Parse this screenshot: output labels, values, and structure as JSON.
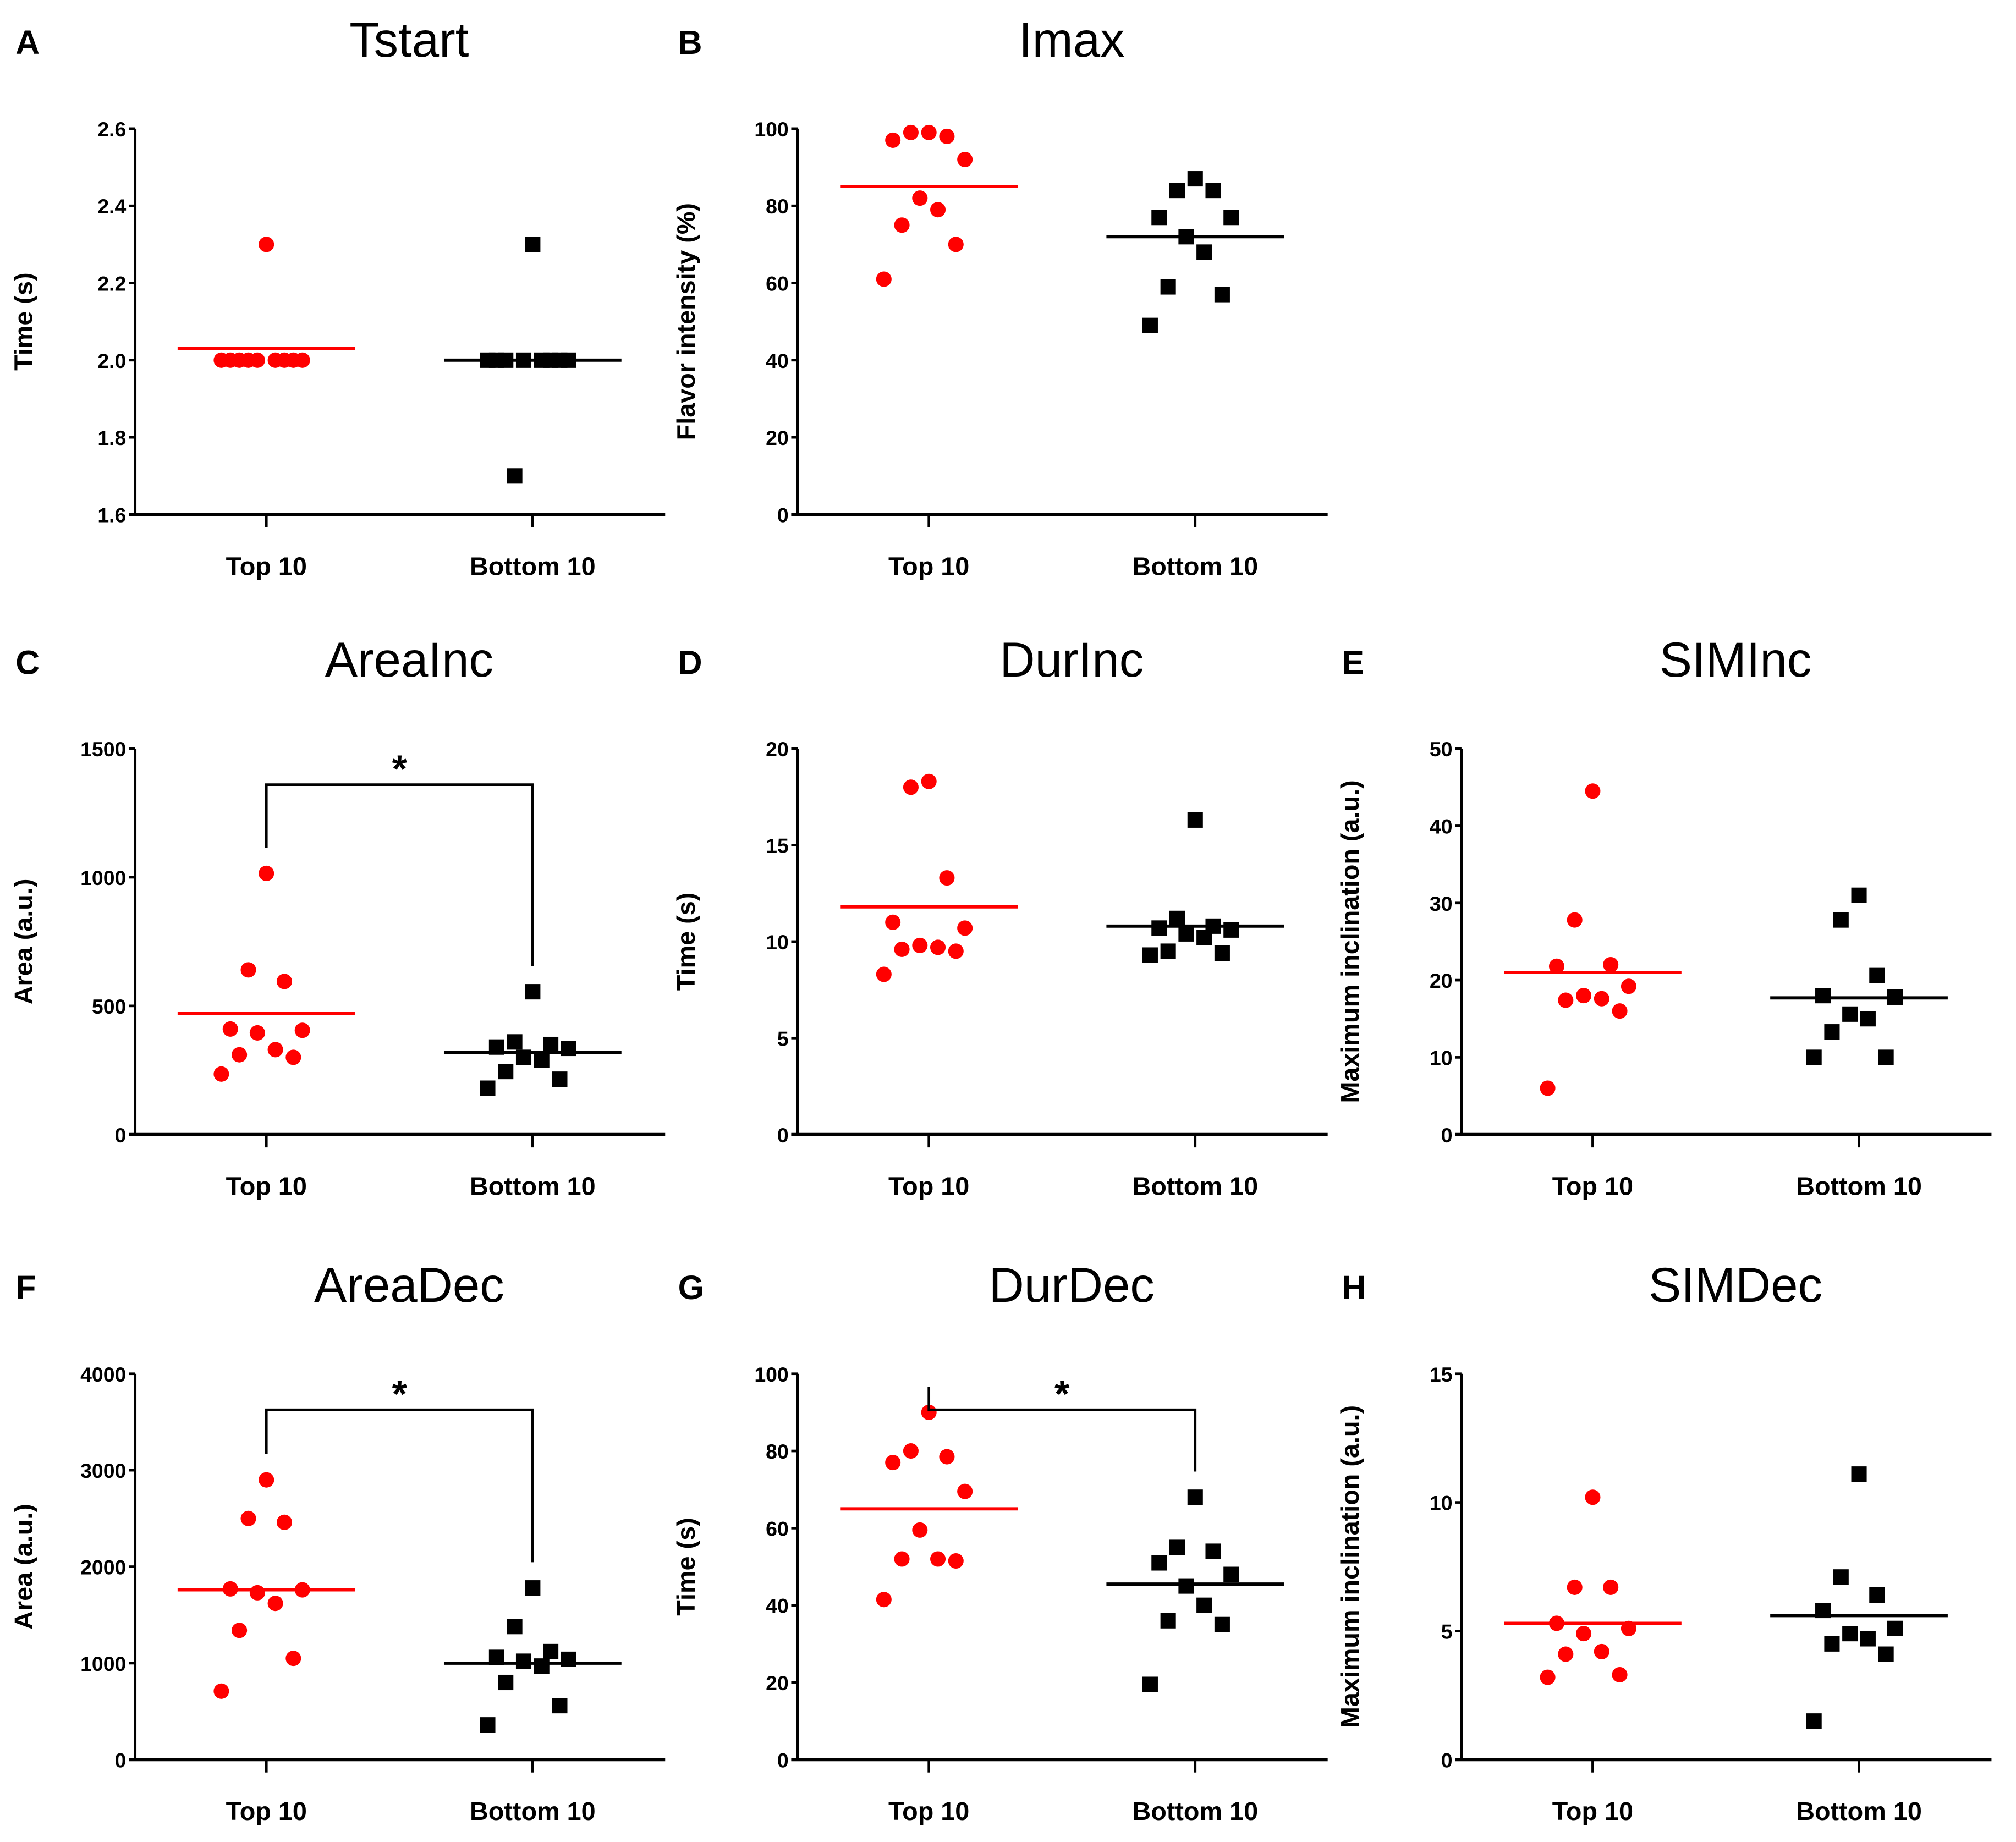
{
  "colors": {
    "top": "#ff0000",
    "bottom": "#000000"
  },
  "chart_data": [
    {
      "panel": "A",
      "type": "scatter",
      "title": "Tstart",
      "ylabel": "Time (s)",
      "ylim": [
        1.6,
        2.6
      ],
      "ystep": 0.2,
      "decimals": 1,
      "categories": [
        "Top 10",
        "Bottom 10"
      ],
      "series": [
        {
          "name": "Top 10",
          "values": [
            2.3,
            2.0,
            2.0,
            2.0,
            2.0,
            2.0,
            2.0,
            2.0,
            2.0,
            2.0
          ],
          "mean": 2.03
        },
        {
          "name": "Bottom 10",
          "values": [
            2.3,
            1.7,
            2.0,
            2.0,
            2.0,
            2.0,
            2.0,
            2.0,
            2.0,
            2.0
          ],
          "mean": 2.0
        }
      ],
      "significance": ""
    },
    {
      "panel": "B",
      "type": "scatter",
      "title": "Imax",
      "ylabel": "Flavor intensity (%)",
      "ylim": [
        0,
        100
      ],
      "ystep": 20,
      "decimals": 0,
      "categories": [
        "Top 10",
        "Bottom 10"
      ],
      "series": [
        {
          "name": "Top 10",
          "values": [
            99,
            99,
            98,
            97,
            92,
            82,
            79,
            75,
            70,
            61
          ],
          "mean": 85
        },
        {
          "name": "Bottom 10",
          "values": [
            87,
            84,
            84,
            77,
            77,
            72,
            68,
            59,
            57,
            49
          ],
          "mean": 72
        }
      ],
      "significance": ""
    },
    {
      "panel": "C",
      "type": "scatter",
      "title": "AreaInc",
      "ylabel": "Area (a.u.)",
      "ylim": [
        0,
        1500
      ],
      "ystep": 500,
      "decimals": 0,
      "categories": [
        "Top 10",
        "Bottom 10"
      ],
      "series": [
        {
          "name": "Top 10",
          "values": [
            1015,
            640,
            595,
            410,
            405,
            395,
            330,
            310,
            300,
            235
          ],
          "mean": 470
        },
        {
          "name": "Bottom 10",
          "values": [
            555,
            360,
            350,
            340,
            335,
            300,
            290,
            245,
            215,
            180
          ],
          "mean": 320
        }
      ],
      "significance": "*"
    },
    {
      "panel": "D",
      "type": "scatter",
      "title": "DurInc",
      "ylabel": "Time (s)",
      "ylim": [
        0,
        20
      ],
      "ystep": 5,
      "decimals": 0,
      "categories": [
        "Top 10",
        "Bottom 10"
      ],
      "series": [
        {
          "name": "Top 10",
          "values": [
            18.3,
            18.0,
            13.3,
            11.0,
            10.7,
            9.8,
            9.7,
            9.6,
            9.5,
            8.3
          ],
          "mean": 11.8
        },
        {
          "name": "Bottom 10",
          "values": [
            16.3,
            11.2,
            10.8,
            10.7,
            10.6,
            10.4,
            10.2,
            9.5,
            9.4,
            9.3
          ],
          "mean": 10.8
        }
      ],
      "significance": ""
    },
    {
      "panel": "E",
      "type": "scatter",
      "title": "SIMInc",
      "ylabel": "Maximum inclination (a.u.)",
      "ylim": [
        0,
        50
      ],
      "ystep": 10,
      "decimals": 0,
      "categories": [
        "Top 10",
        "Bottom 10"
      ],
      "series": [
        {
          "name": "Top 10",
          "values": [
            44.5,
            27.8,
            22,
            21.8,
            19.2,
            18,
            17.6,
            17.4,
            16,
            6
          ],
          "mean": 21
        },
        {
          "name": "Bottom 10",
          "values": [
            31,
            27.8,
            20.6,
            18,
            17.8,
            15.6,
            15,
            13.3,
            10,
            10
          ],
          "mean": 17.7
        }
      ],
      "significance": ""
    },
    {
      "panel": "F",
      "type": "scatter",
      "title": "AreaDec",
      "ylabel": "Area (a.u.)",
      "ylim": [
        0,
        4000
      ],
      "ystep": 1000,
      "decimals": 0,
      "categories": [
        "Top 10",
        "Bottom 10"
      ],
      "series": [
        {
          "name": "Top 10",
          "values": [
            2900,
            2500,
            2460,
            1770,
            1760,
            1730,
            1620,
            1340,
            1050,
            710
          ],
          "mean": 1760
        },
        {
          "name": "Bottom 10",
          "values": [
            1780,
            1380,
            1120,
            1060,
            1040,
            1020,
            970,
            800,
            560,
            360
          ],
          "mean": 1000
        }
      ],
      "significance": "*"
    },
    {
      "panel": "G",
      "type": "scatter",
      "title": "DurDec",
      "ylabel": "Time (s)",
      "ylim": [
        0,
        100
      ],
      "ystep": 20,
      "decimals": 0,
      "categories": [
        "Top 10",
        "Bottom 10"
      ],
      "series": [
        {
          "name": "Top 10",
          "values": [
            90,
            80,
            78.5,
            77,
            69.5,
            59.5,
            52,
            52,
            51.5,
            41.5
          ],
          "mean": 65
        },
        {
          "name": "Bottom 10",
          "values": [
            68,
            55,
            54,
            51,
            48,
            45,
            40,
            36,
            35,
            19.5
          ],
          "mean": 45.5
        }
      ],
      "significance": "*"
    },
    {
      "panel": "H",
      "type": "scatter",
      "title": "SIMDec",
      "ylabel": "Maximum inclination (a.u.)",
      "ylim": [
        0,
        15
      ],
      "ystep": 5,
      "decimals": 0,
      "categories": [
        "Top 10",
        "Bottom 10"
      ],
      "series": [
        {
          "name": "Top 10",
          "values": [
            10.2,
            6.7,
            6.7,
            5.3,
            5.1,
            4.9,
            4.2,
            4.1,
            3.3,
            3.2
          ],
          "mean": 5.3
        },
        {
          "name": "Bottom 10",
          "values": [
            11.1,
            7.1,
            6.4,
            5.8,
            5.1,
            4.9,
            4.7,
            4.5,
            4.1,
            1.5
          ],
          "mean": 5.6
        }
      ],
      "significance": ""
    }
  ]
}
